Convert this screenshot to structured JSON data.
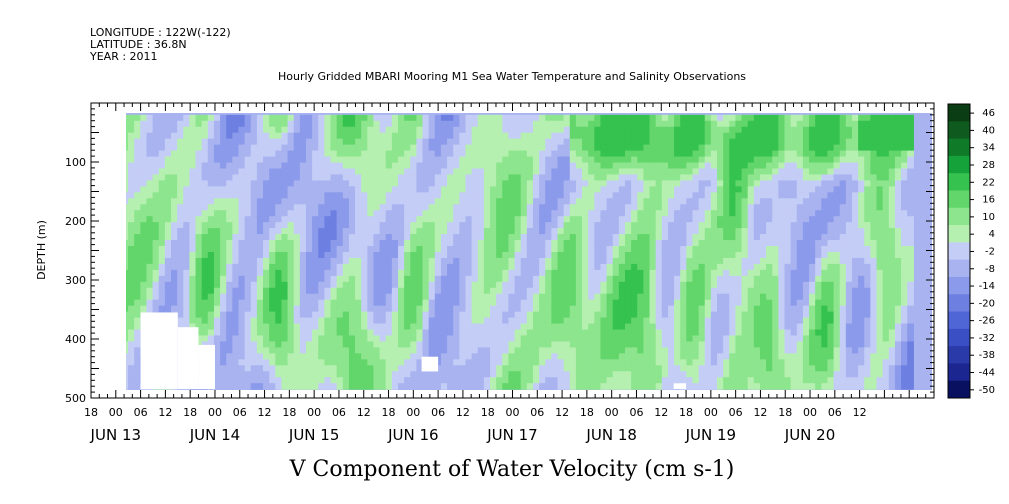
{
  "header": {
    "longitude": "LONGITUDE : 122W(-122)",
    "latitude": "LATITUDE : 36.8N",
    "year": "YEAR : 2011"
  },
  "chart_data": {
    "type": "heatmap",
    "title": "Hourly Gridded MBARI Mooring M1 Sea Water Temperature and Salinity Observations",
    "xlabel": "V Component of Water Velocity (cm s-1)",
    "ylabel": "DEPTH (m)",
    "y_reversed": true,
    "ylim": [
      500,
      0
    ],
    "y_ticks": [
      "100",
      "200",
      "300",
      "400",
      "500"
    ],
    "x_hour_labels": [
      "18",
      "00",
      "06",
      "12",
      "18",
      "00",
      "06",
      "12",
      "18",
      "00",
      "06",
      "12",
      "18",
      "00",
      "06",
      "12",
      "18",
      "00",
      "06",
      "12",
      "18",
      "00",
      "06",
      "12",
      "18",
      "00",
      "06",
      "12",
      "18",
      "00",
      "06",
      "12"
    ],
    "x_date_labels": [
      "JUN 13",
      "JUN 14",
      "JUN 15",
      "JUN 16",
      "JUN 17",
      "JUN 18",
      "JUN 19",
      "JUN 20"
    ],
    "x_range_hours": [
      -6,
      198
    ],
    "data_hour_range": [
      0,
      193
    ],
    "depth_range": [
      20,
      485
    ],
    "colorbar": {
      "labels": [
        "46",
        "40",
        "34",
        "28",
        "22",
        "16",
        "10",
        "4",
        "-2",
        "-8",
        "-14",
        "-20",
        "-26",
        "-32",
        "-38",
        "-44",
        "-50"
      ],
      "colors": [
        "#0b3d14",
        "#0f5a1e",
        "#0f7a28",
        "#16a23a",
        "#35c24e",
        "#62d66a",
        "#8de58e",
        "#b6f0b0",
        "#c4cdf6",
        "#a8b3f0",
        "#8b9aea",
        "#6d80e2",
        "#4f66d6",
        "#3a4fc4",
        "#2a3aa8",
        "#1c2690",
        "#0a1060"
      ]
    },
    "notes": "Field shown as contour fill; green = positive (northward) velocity, blue = negative (southward) velocity; white patches = missing data."
  }
}
